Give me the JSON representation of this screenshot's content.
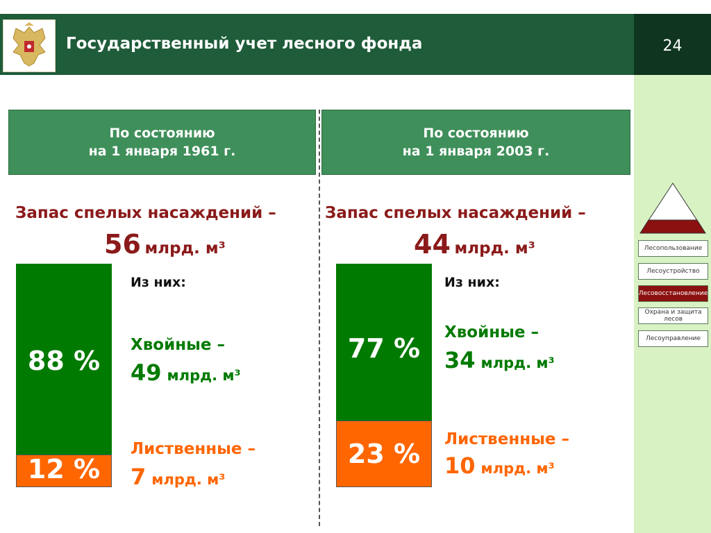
{
  "header": {
    "title": "Государственный учет лесного фонда",
    "page_number": "24",
    "emblem_icon": "russian-coat-of-arms"
  },
  "colors": {
    "header_bg": "#1f5c3a",
    "coniferous": "#007a00",
    "deciduous": "#ff6600",
    "accent_red": "#8b1a1a"
  },
  "columns": [
    {
      "heading_line1": "По состоянию",
      "heading_line2": "на 1 января 1961 г.",
      "stock_label": "Запас спелых насаждений –",
      "stock_value": "56",
      "stock_unit": "млрд. м³",
      "of_them": "Из них:",
      "coniferous": {
        "percent": "88 %",
        "label": "Хвойные –",
        "value": "49",
        "unit": "млрд. м³"
      },
      "deciduous": {
        "percent": "12 %",
        "label": "Лиственные –",
        "value": "7",
        "unit": "млрд. м³"
      }
    },
    {
      "heading_line1": "По состоянию",
      "heading_line2": "на 1 января 2003 г.",
      "stock_label": "Запас спелых насаждений –",
      "stock_value": "44",
      "stock_unit": "млрд. м³",
      "of_them": "Из них:",
      "coniferous": {
        "percent": "77 %",
        "label": "Хвойные –",
        "value": "34",
        "unit": "млрд. м³"
      },
      "deciduous": {
        "percent": "23 %",
        "label": "Лиственные –",
        "value": "10",
        "unit": "млрд. м³"
      }
    }
  ],
  "sidebar": {
    "items": [
      {
        "label": "Лесопользование",
        "active": false
      },
      {
        "label": "Лесоустройство",
        "active": false
      },
      {
        "label": "Лесовосстановление",
        "active": true
      },
      {
        "label": "Охрана и защита лесов",
        "active": false
      },
      {
        "label": "Лесоуправление",
        "active": false
      }
    ]
  }
}
